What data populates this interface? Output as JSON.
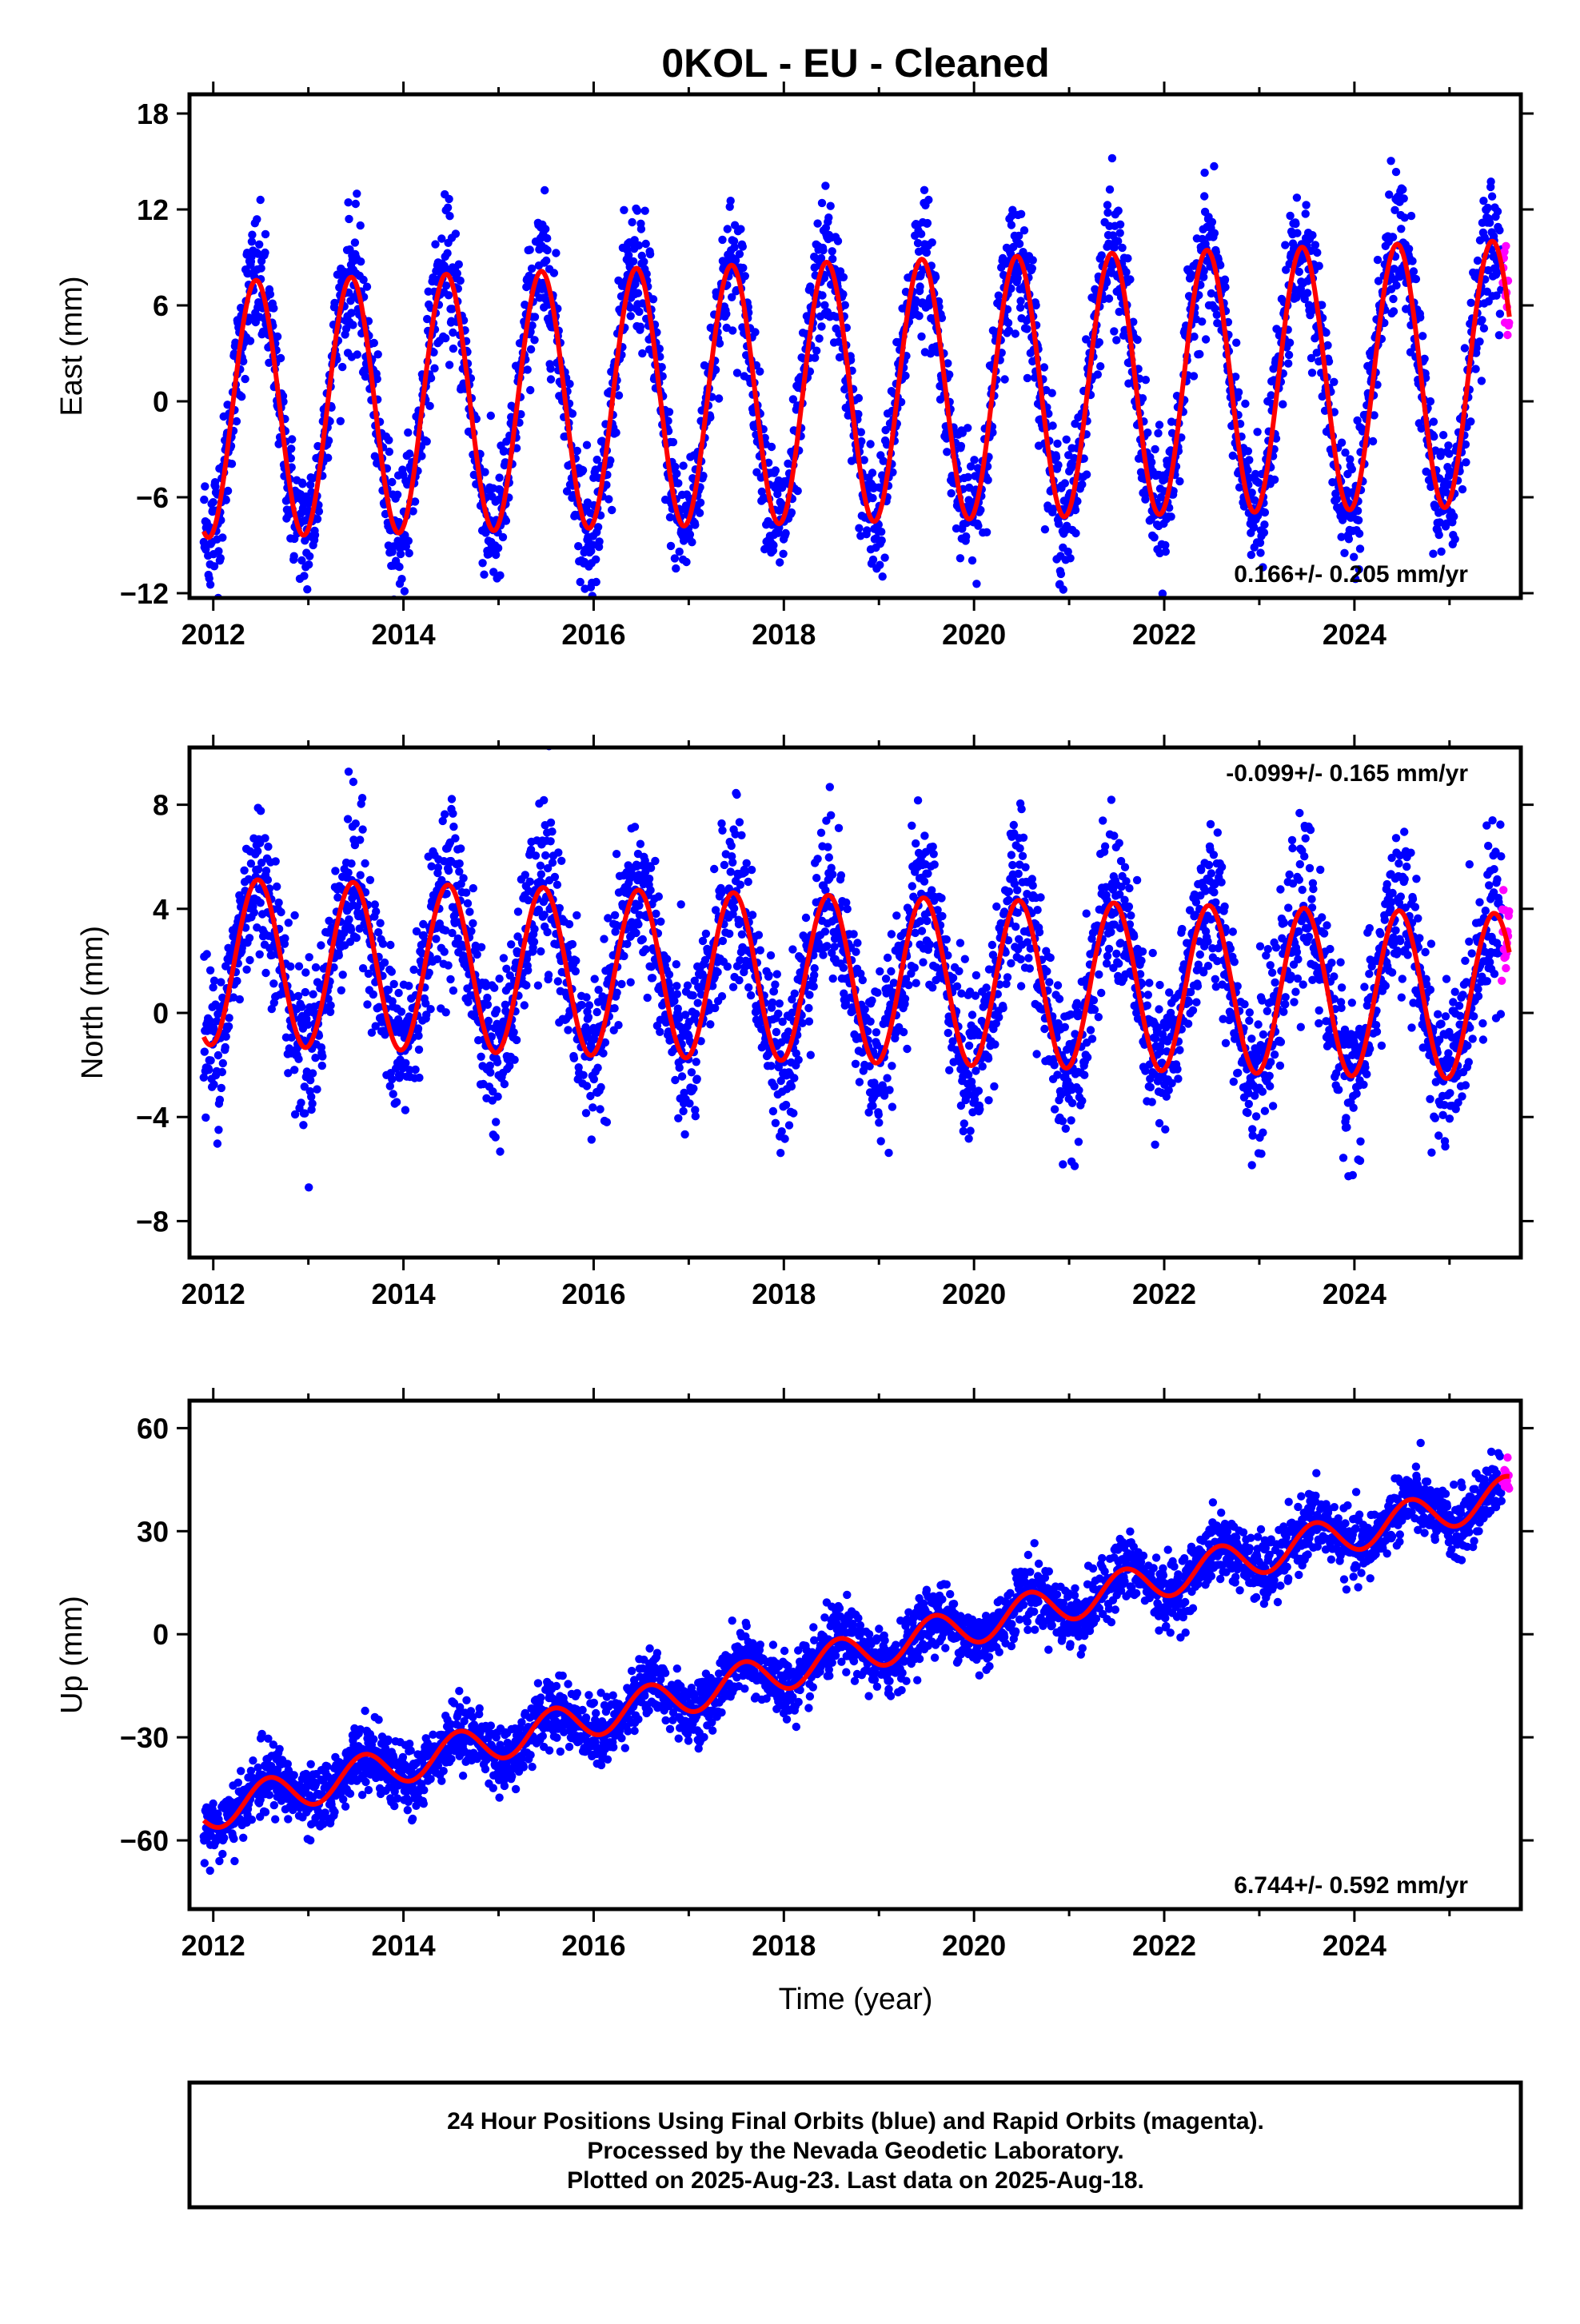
{
  "title": "0KOL  - EU - Cleaned",
  "xlabel": "Time (year)",
  "footer_lines": [
    "24 Hour Positions Using Final Orbits (blue) and Rapid Orbits (magenta).",
    "Processed by the Nevada Geodetic Laboratory.",
    "Plotted on 2025-Aug-23. Last data on 2025-Aug-18."
  ],
  "colors": {
    "final_orbits": "#0000ff",
    "rapid_orbits": "#ff00ff",
    "model": "#ff0000",
    "axis": "#000000"
  },
  "chart_data": [
    {
      "type": "scatter",
      "ylabel": "East (mm)",
      "rate_label": "0.166+/- 0.205 mm/yr",
      "rate_position": "bottom-right",
      "xlim": [
        2011.75,
        2025.75
      ],
      "ylim": [
        -12.3,
        19.2
      ],
      "x_ticks": [
        2012,
        2014,
        2016,
        2018,
        2020,
        2022,
        2024
      ],
      "y_ticks": [
        -12,
        -6,
        0,
        6,
        12,
        18
      ],
      "data_span": [
        2011.9,
        2025.63
      ],
      "rapid_span": [
        2025.55,
        2025.63
      ],
      "model": {
        "offset": 0.6,
        "rate": 0.166,
        "ref_epoch": 2018.7,
        "annual_amp_start": 8.0,
        "annual_amp_end": 8.3,
        "phase_peak": 0.45,
        "semiannual_amp": 0.0
      },
      "scatter_sd": 1.6
    },
    {
      "type": "scatter",
      "ylabel": "North (mm)",
      "rate_label": "-0.099+/- 0.165 mm/yr",
      "rate_position": "top-right",
      "xlim": [
        2011.75,
        2025.75
      ],
      "ylim": [
        -9.4,
        10.2
      ],
      "x_ticks": [
        2012,
        2014,
        2016,
        2018,
        2020,
        2022,
        2024
      ],
      "y_ticks": [
        -8,
        -4,
        0,
        4,
        8
      ],
      "data_span": [
        2011.9,
        2025.63
      ],
      "rapid_span": [
        2025.55,
        2025.63
      ],
      "model": {
        "offset": 1.3,
        "rate": -0.099,
        "ref_epoch": 2018.7,
        "annual_amp_start": 3.2,
        "annual_amp_end": 3.2,
        "phase_peak": 0.47,
        "semiannual_amp": 0.0
      },
      "scatter_sd": 1.2
    },
    {
      "type": "scatter",
      "ylabel": "Up (mm)",
      "rate_label": "6.744+/- 0.592 mm/yr",
      "rate_position": "bottom-right",
      "xlim": [
        2011.75,
        2025.75
      ],
      "ylim": [
        -80,
        68
      ],
      "x_ticks": [
        2012,
        2014,
        2016,
        2018,
        2020,
        2022,
        2024
      ],
      "y_ticks": [
        -60,
        -30,
        0,
        30,
        60
      ],
      "data_span": [
        2011.9,
        2025.63
      ],
      "rapid_span": [
        2025.55,
        2025.63
      ],
      "model": {
        "offset": -6.0,
        "rate": 6.744,
        "ref_epoch": 2018.7,
        "annual_amp_start": 5.5,
        "annual_amp_end": 5.5,
        "phase_peak": 0.58,
        "semiannual_amp": 0.0
      },
      "scatter_sd": 3.8
    }
  ]
}
